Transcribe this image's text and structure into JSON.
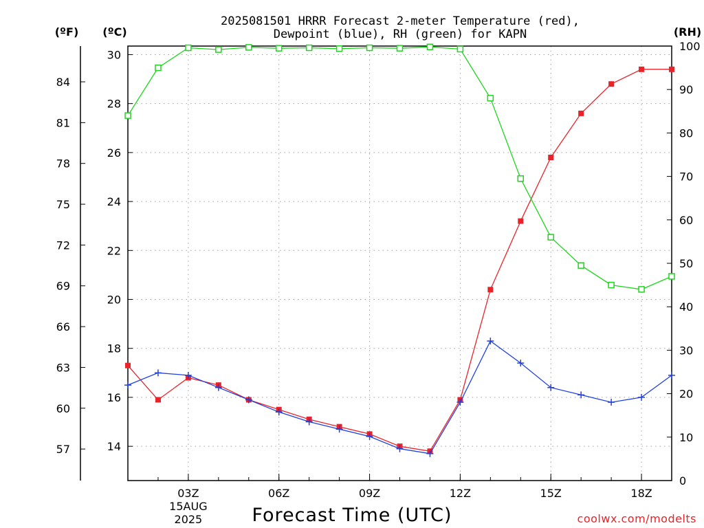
{
  "title_lines": [
    "2025081501 HRRR Forecast 2-meter Temperature (red),",
    "Dewpoint (blue), RH (green) for KAPN"
  ],
  "credit": "coolwx.com/modelts",
  "colors": {
    "temperature": "#e8232a",
    "dewpoint": "#1f3fe0",
    "rh": "#1dd61d",
    "grid": "#a0a0a0"
  },
  "chart_data": {
    "type": "line",
    "title": "2025081501 HRRR Forecast 2-meter Temperature (red), Dewpoint (blue), RH (green) for KAPN",
    "xlabel": "Forecast Time (UTC)",
    "x": [
      "01Z",
      "02Z",
      "03Z",
      "04Z",
      "05Z",
      "06Z",
      "07Z",
      "08Z",
      "09Z",
      "10Z",
      "11Z",
      "12Z",
      "13Z",
      "14Z",
      "15Z",
      "16Z",
      "17Z",
      "18Z",
      "19Z"
    ],
    "xlim": [
      "01Z",
      "19Z"
    ],
    "x_ticks": [
      {
        "x": "03Z",
        "label": "03Z",
        "sublabels": [
          "15AUG",
          "2025"
        ]
      },
      {
        "x": "06Z",
        "label": "06Z"
      },
      {
        "x": "09Z",
        "label": "09Z"
      },
      {
        "x": "12Z",
        "label": "12Z"
      },
      {
        "x": "15Z",
        "label": "15Z"
      },
      {
        "x": "18Z",
        "label": "18Z"
      }
    ],
    "y_left": {
      "label": "(ºC)",
      "range": [
        12.6,
        30.35
      ],
      "ticks": [
        14,
        16,
        18,
        20,
        22,
        24,
        26,
        28,
        30
      ]
    },
    "y_far_left": {
      "label": "(ºF)",
      "ticks": [
        57,
        60,
        63,
        66,
        69,
        72,
        75,
        78,
        81,
        84
      ]
    },
    "y_right": {
      "label": "(RH)",
      "range": [
        0,
        100
      ],
      "ticks": [
        0,
        10,
        20,
        30,
        40,
        50,
        60,
        70,
        80,
        90,
        100
      ]
    },
    "grid": true,
    "series": [
      {
        "name": "Temperature",
        "axis": "left",
        "marker": "filled-square",
        "values": [
          17.3,
          15.9,
          16.8,
          16.5,
          15.9,
          15.5,
          15.1,
          14.8,
          14.5,
          14.0,
          13.8,
          15.9,
          20.4,
          23.2,
          25.8,
          27.6,
          28.8,
          29.4,
          29.4
        ]
      },
      {
        "name": "Dewpoint",
        "axis": "left",
        "marker": "plus",
        "values": [
          16.5,
          17.0,
          16.9,
          16.4,
          15.9,
          15.4,
          15.0,
          14.7,
          14.4,
          13.9,
          13.7,
          15.8,
          18.3,
          17.4,
          16.4,
          16.1,
          15.8,
          16.0,
          16.9
        ]
      },
      {
        "name": "RH",
        "axis": "right",
        "marker": "open-square",
        "values": [
          84,
          95,
          99.6,
          99.2,
          99.7,
          99.5,
          99.6,
          99.4,
          99.6,
          99.5,
          99.8,
          99.3,
          88,
          69.5,
          56,
          49.5,
          45,
          44,
          47
        ]
      }
    ]
  }
}
